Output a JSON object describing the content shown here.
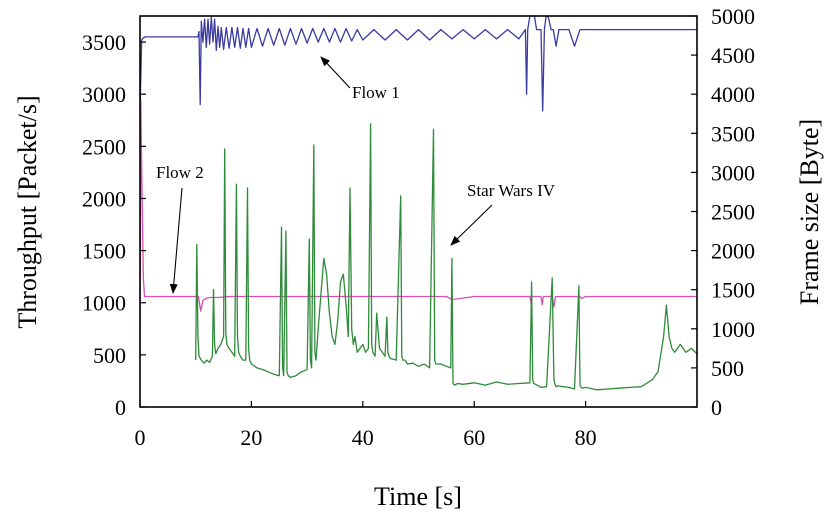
{
  "chart_data": {
    "type": "line",
    "title": "",
    "xlabel": "Time [s]",
    "ylabel_left": "Throughput [Packet/s]",
    "ylabel_right": "Frame size [Byte]",
    "xlim": [
      0,
      100
    ],
    "ylim_left": [
      0,
      3750
    ],
    "ylim_right": [
      0,
      5000
    ],
    "x_ticks": [
      0,
      20,
      40,
      60,
      80
    ],
    "y_ticks_left": [
      0,
      500,
      1000,
      1500,
      2000,
      2500,
      3000,
      3500
    ],
    "y_ticks_right": [
      0,
      500,
      1000,
      1500,
      2000,
      2500,
      3000,
      3500,
      4000,
      4500,
      5000
    ],
    "grid": false,
    "series": [
      {
        "name": "Flow 1",
        "axis": "left",
        "color": "#3a3aa0",
        "x": [
          0,
          0.3,
          0.6,
          1.0,
          1.5,
          10.4,
          10.6,
          10.8,
          11.0,
          11.3,
          11.6,
          11.9,
          12.2,
          12.5,
          12.8,
          13.1,
          13.4,
          13.7,
          14.0,
          14.3,
          14.6,
          15.0,
          15.5,
          16.0,
          16.5,
          17.0,
          17.5,
          18.0,
          18.5,
          19.0,
          19.5,
          20.0,
          21.0,
          22.0,
          23.0,
          24.0,
          25.0,
          26.0,
          27.0,
          28.0,
          29.0,
          30.0,
          31.0,
          32.0,
          33.0,
          34.0,
          35.0,
          36.0,
          37.0,
          38.0,
          39.0,
          40.0,
          42.0,
          44.0,
          46.0,
          48.0,
          50.0,
          52.0,
          54.0,
          56.0,
          58.0,
          60.0,
          62.0,
          64.0,
          66.0,
          68.0,
          69.2,
          69.4,
          69.6,
          70.0,
          70.8,
          71.2,
          72.0,
          72.3,
          72.6,
          72.9,
          73.3,
          73.8,
          74.2,
          74.7,
          75.2,
          76.0,
          77.0,
          78.0,
          79.0,
          79.3,
          79.6,
          80.0,
          85.0,
          90.0,
          95.0,
          100.0
        ],
        "values": [
          2850,
          3520,
          3540,
          3550,
          3550,
          3550,
          3600,
          2900,
          3700,
          3500,
          3720,
          3450,
          3720,
          3480,
          3740,
          3500,
          3720,
          3420,
          3650,
          3450,
          3640,
          3430,
          3640,
          3440,
          3640,
          3450,
          3640,
          3440,
          3630,
          3450,
          3630,
          3450,
          3630,
          3460,
          3630,
          3470,
          3630,
          3470,
          3630,
          3480,
          3630,
          3490,
          3630,
          3500,
          3630,
          3500,
          3630,
          3500,
          3630,
          3510,
          3620,
          3520,
          3620,
          3520,
          3620,
          3520,
          3620,
          3520,
          3620,
          3530,
          3620,
          3530,
          3620,
          3530,
          3620,
          3530,
          3620,
          3000,
          3620,
          3750,
          3750,
          3620,
          3620,
          2840,
          3620,
          3750,
          3740,
          3620,
          3620,
          3460,
          3620,
          3620,
          3620,
          3460,
          3620,
          3620,
          3620,
          3620,
          3620,
          3620,
          3620,
          3620
        ]
      },
      {
        "name": "Flow 2",
        "axis": "left",
        "color": "#d94fb0",
        "x": [
          0,
          0.15,
          0.35,
          0.6,
          0.8,
          1.0,
          10.5,
          10.9,
          11.3,
          11.8,
          12.5,
          14.0,
          16.0,
          18.0,
          20.0,
          25.0,
          30.0,
          35.0,
          40.0,
          45.0,
          50.0,
          55.0,
          56.0,
          60.0,
          65.0,
          70.0,
          70.2,
          70.4,
          71.0,
          72.0,
          72.2,
          72.4,
          73.0,
          74.0,
          74.3,
          74.6,
          75.0,
          76.0,
          78.0,
          79.0,
          79.3,
          80.0,
          85.0,
          90.0,
          95.0,
          100.0
        ],
        "values": [
          470,
          2950,
          2150,
          1250,
          1060,
          1060,
          1060,
          920,
          1020,
          1040,
          1050,
          1050,
          1060,
          1060,
          1060,
          1060,
          1060,
          1060,
          1060,
          1060,
          1060,
          1060,
          1030,
          1060,
          1060,
          1060,
          990,
          1060,
          1060,
          1060,
          980,
          1060,
          1060,
          1060,
          960,
          1060,
          1060,
          1060,
          1060,
          1060,
          1040,
          1060,
          1060,
          1060,
          1060,
          1060
        ]
      },
      {
        "name": "Star Wars IV",
        "axis": "right",
        "color": "#2e8b3a",
        "x": [
          10.0,
          10.2,
          10.4,
          10.6,
          11.0,
          11.5,
          12.0,
          12.5,
          13.0,
          13.2,
          13.4,
          13.6,
          14.0,
          14.5,
          15.0,
          15.2,
          15.4,
          15.6,
          16.0,
          16.5,
          17.0,
          17.3,
          17.5,
          17.7,
          18.0,
          18.5,
          19.0,
          19.3,
          19.5,
          19.7,
          20.0,
          21.0,
          22.0,
          23.0,
          24.0,
          25.0,
          25.4,
          25.6,
          25.8,
          26.2,
          26.4,
          26.6,
          27.0,
          28.0,
          29.0,
          30.0,
          30.4,
          30.6,
          30.8,
          31.2,
          31.4,
          31.6,
          32.0,
          32.5,
          33.0,
          33.5,
          34.0,
          34.5,
          35.0,
          35.5,
          36.0,
          36.5,
          37.0,
          37.4,
          37.7,
          38.0,
          38.3,
          38.6,
          39.0,
          39.5,
          40.0,
          40.5,
          41.0,
          41.4,
          41.6,
          41.8,
          42.2,
          42.5,
          43.0,
          43.5,
          44.0,
          44.3,
          44.5,
          44.7,
          45.0,
          46.0,
          46.8,
          47.0,
          47.2,
          47.6,
          48.0,
          49.0,
          50.0,
          51.0,
          52.0,
          52.7,
          52.9,
          53.1,
          53.5,
          54.0,
          55.0,
          55.8,
          56.0,
          56.2,
          56.5,
          57.0,
          58.0,
          60.0,
          62.0,
          64.0,
          66.0,
          68.0,
          70.0,
          70.3,
          70.5,
          70.7,
          71.0,
          72.0,
          73.0,
          74.0,
          74.3,
          74.5,
          74.7,
          75.0,
          76.0,
          77.0,
          78.0,
          78.8,
          79.0,
          79.2,
          79.5,
          80.0,
          82.0,
          84.0,
          86.0,
          88.0,
          90.0,
          92.0,
          93.0,
          94.0,
          94.5,
          95.0,
          95.5,
          96.0,
          97.0,
          98.0,
          99.0,
          100.0
        ],
        "values": [
          600,
          2080,
          900,
          650,
          600,
          560,
          600,
          570,
          650,
          1500,
          800,
          680,
          750,
          800,
          900,
          3300,
          950,
          800,
          750,
          700,
          650,
          2850,
          900,
          700,
          650,
          600,
          600,
          2800,
          750,
          600,
          550,
          500,
          480,
          450,
          420,
          400,
          2300,
          500,
          400,
          2250,
          450,
          400,
          380,
          400,
          450,
          480,
          2150,
          600,
          500,
          3350,
          700,
          600,
          1000,
          1450,
          1900,
          1700,
          1200,
          900,
          800,
          1100,
          1600,
          1700,
          1300,
          900,
          2800,
          1000,
          800,
          900,
          700,
          750,
          800,
          700,
          750,
          3620,
          800,
          700,
          650,
          1200,
          750,
          700,
          650,
          1150,
          700,
          650,
          620,
          600,
          2700,
          650,
          600,
          600,
          550,
          560,
          520,
          550,
          500,
          3550,
          600,
          550,
          550,
          550,
          520,
          500,
          1900,
          300,
          280,
          300,
          290,
          310,
          280,
          320,
          290,
          300,
          310,
          1600,
          350,
          300,
          290,
          250,
          260,
          1650,
          350,
          290,
          260,
          270,
          260,
          250,
          230,
          1550,
          280,
          250,
          240,
          250,
          220,
          230,
          240,
          250,
          260,
          350,
          450,
          900,
          1300,
          900,
          750,
          700,
          800,
          700,
          750,
          680
        ]
      }
    ],
    "annotations": [
      {
        "text": "Flow 1",
        "target_series": "Flow 1"
      },
      {
        "text": "Flow 2",
        "target_series": "Flow 2"
      },
      {
        "text": "Star Wars IV",
        "target_series": "Star Wars IV"
      }
    ]
  }
}
